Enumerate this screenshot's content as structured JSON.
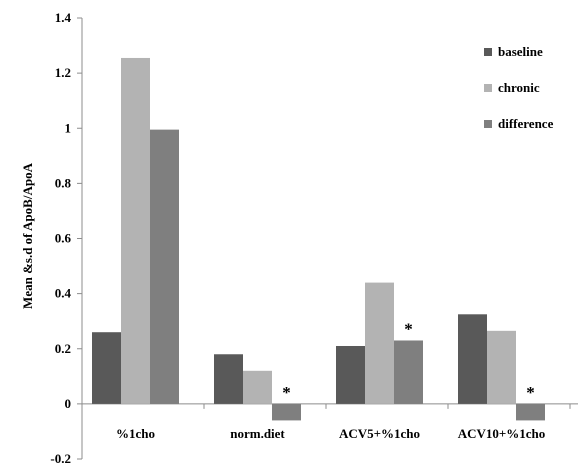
{
  "chart_data": {
    "type": "bar",
    "title": "",
    "xlabel": "",
    "ylabel": "Mean &s.d of ApoB/ApoA",
    "ylim": [
      -0.2,
      1.4
    ],
    "yticks": [
      -0.2,
      0,
      0.2,
      0.4,
      0.6,
      0.8,
      1,
      1.2,
      1.4
    ],
    "ytick_labels": [
      "-0.2",
      "0",
      "0.2",
      "0.4",
      "0.6",
      "0.8",
      "1",
      "1.2",
      "1.4"
    ],
    "categories": [
      "%1cho",
      "norm.diet",
      "ACV5+%1cho",
      "ACV10+%1cho"
    ],
    "series": [
      {
        "name": "baseline",
        "color": "#595959",
        "values": [
          0.26,
          0.18,
          0.21,
          0.325
        ]
      },
      {
        "name": "chronic",
        "color": "#b3b3b3",
        "values": [
          1.255,
          0.12,
          0.44,
          0.265
        ]
      },
      {
        "name": "difference",
        "color": "#7f7f7f",
        "values": [
          0.995,
          -0.06,
          0.23,
          -0.06
        ]
      }
    ],
    "annotations": [
      {
        "category_index": 1,
        "series_index": 2,
        "text": "*"
      },
      {
        "category_index": 2,
        "series_index": 2,
        "text": "*"
      },
      {
        "category_index": 3,
        "series_index": 2,
        "text": "*"
      }
    ],
    "grid": false,
    "legend_position": "top-right"
  }
}
